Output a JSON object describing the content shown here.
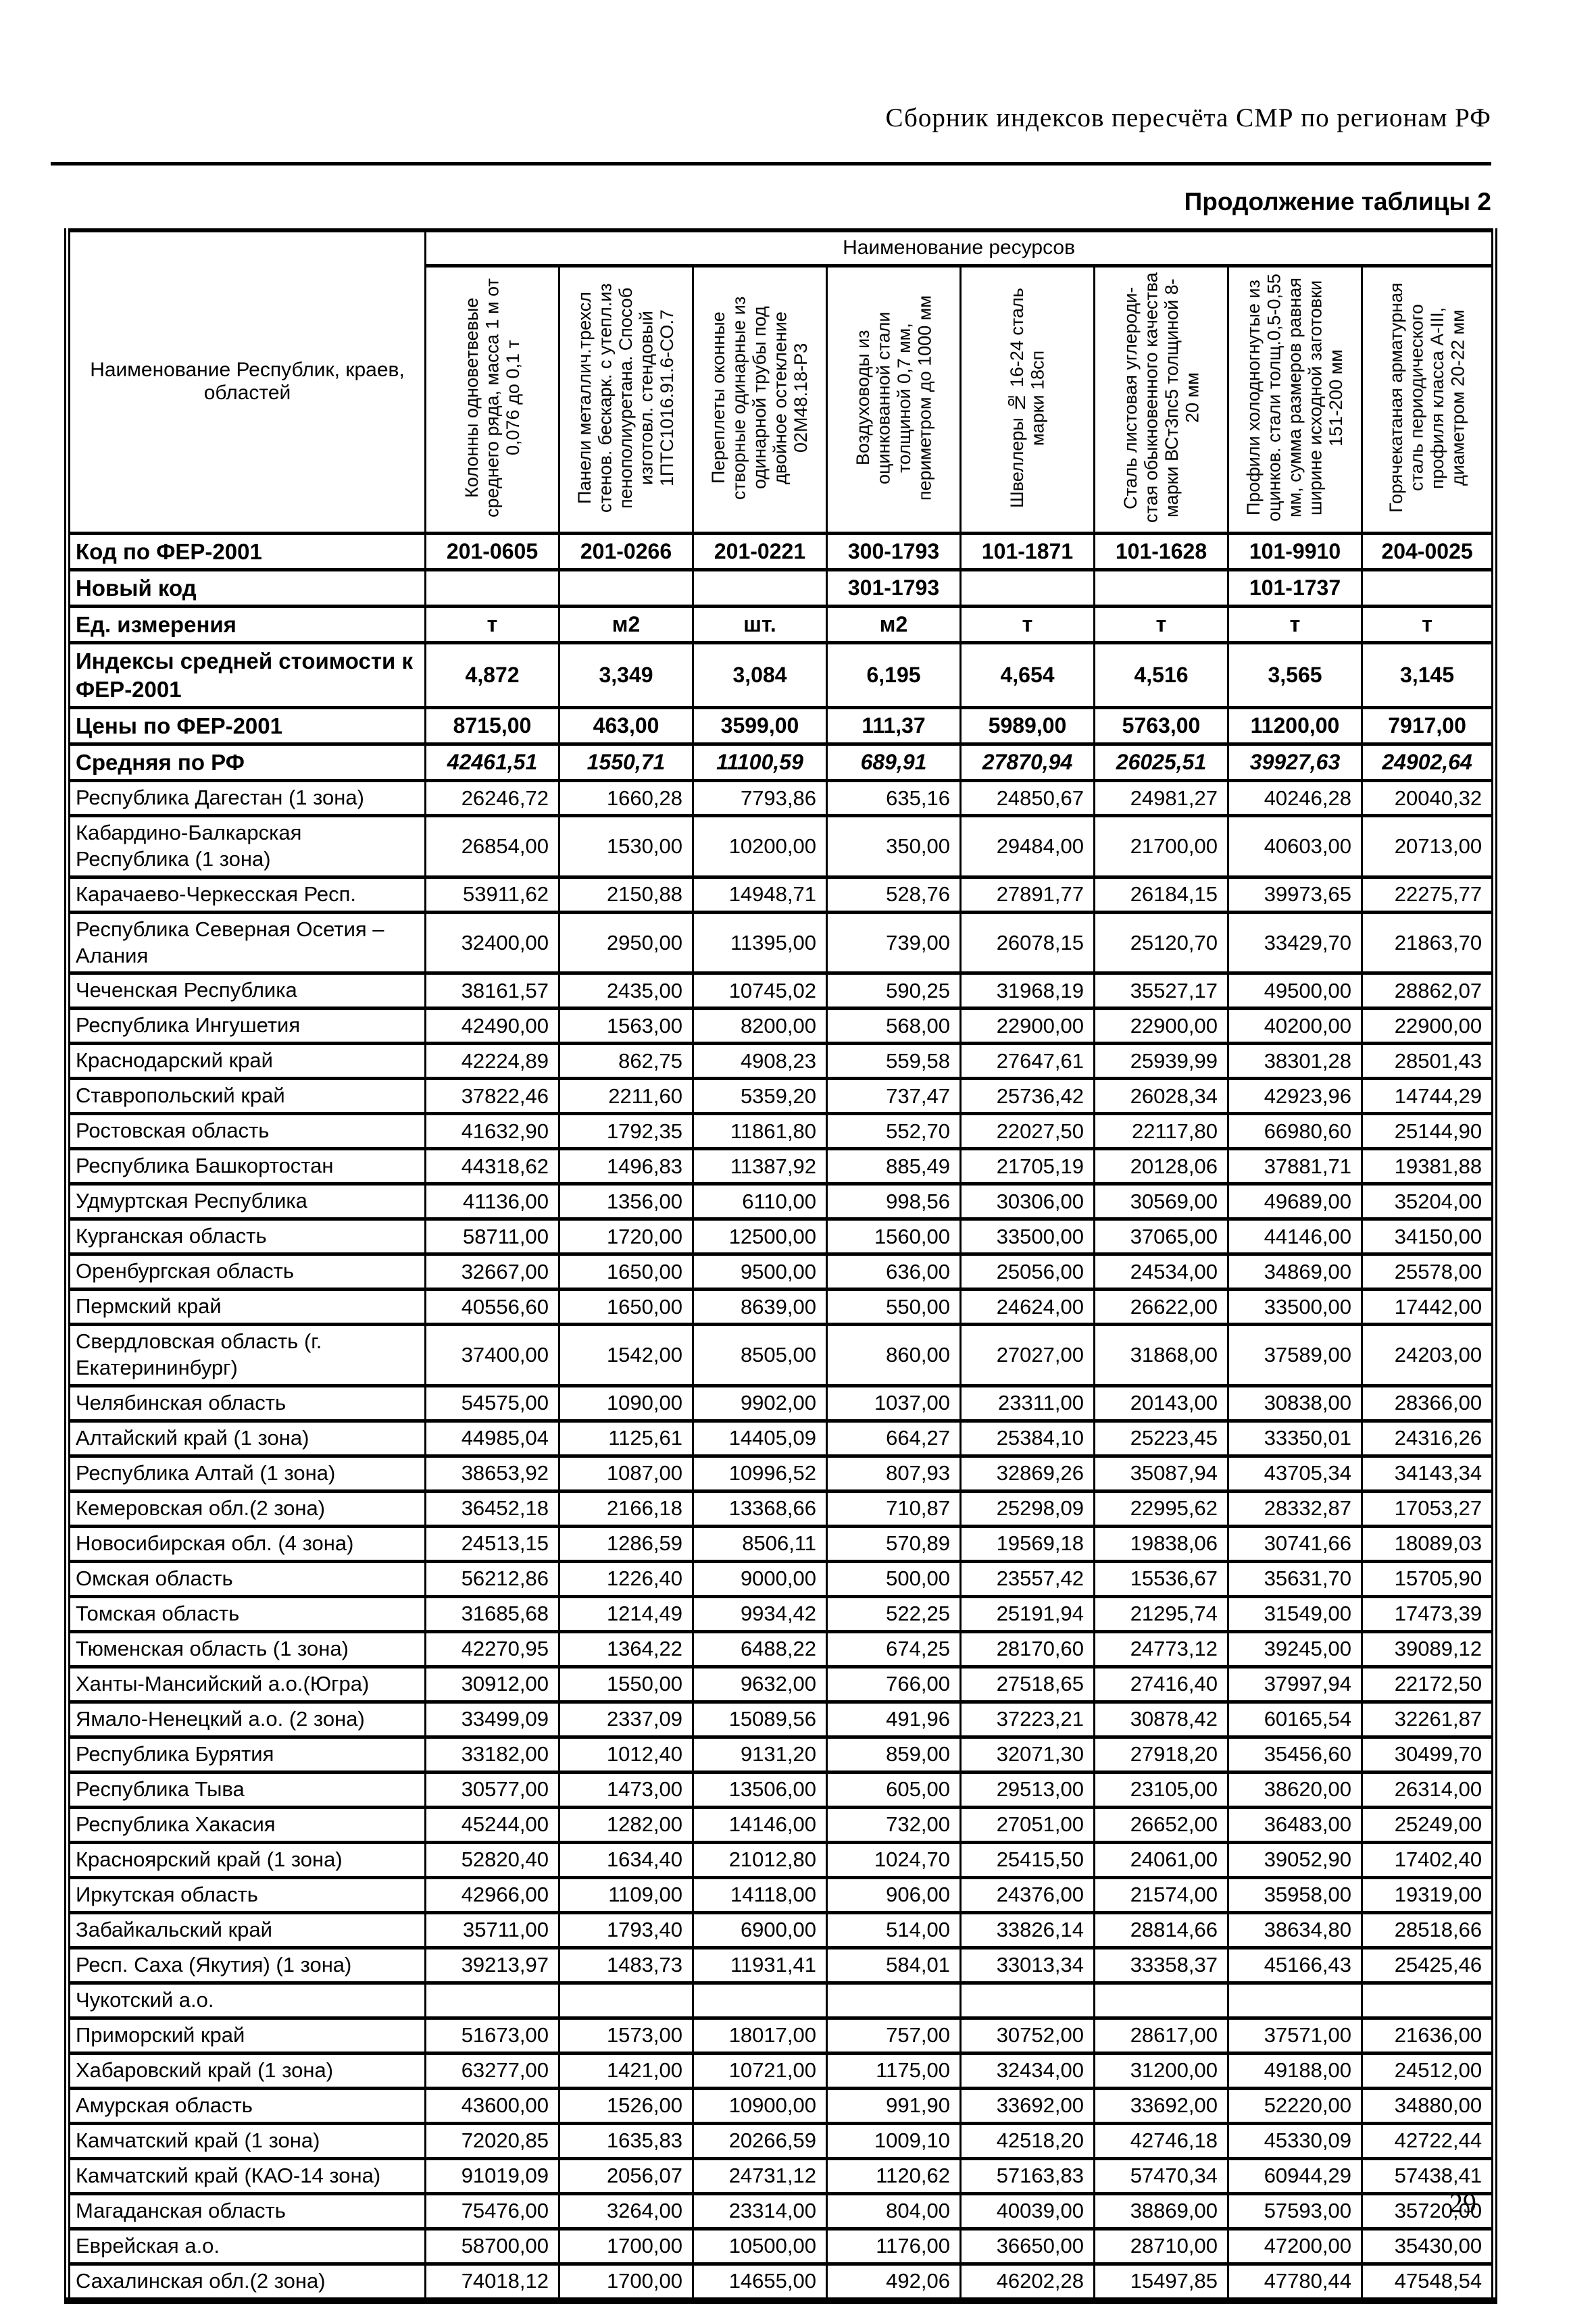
{
  "page": {
    "header_title": "Сборник индексов пересчёта СМР  по регионам РФ",
    "subtitle": "Продолжение таблицы 2",
    "page_number": "29"
  },
  "table": {
    "corner_header": "Наименование Республик, краев, областей",
    "resources_header": "Наименование ресурсов",
    "columns": [
      "Колонны одноветвевые среднего ряда, масса 1 м от 0,076 до 0,1 т",
      "Панели металлич.трехсл стенов. бескарк. с утепл.из пенополиуретана. Способ изготовл. стендовый 1ПТС1016.91.6-СО.7",
      "Переплеты оконные створные одинарные из одинарной трубы под двойное остекление 02М48.18-Р3",
      "Воздуховоды из оцинкованной стали толщиной 0,7 мм, периметром до 1000 мм",
      "Швеллеры № 16-24 сталь марки 18сп",
      "Сталь листовая углероди-стая обыкновенного качества  марки ВСт3пс5 толщиной 8-20 мм",
      "Профили холодногнутые из оцинков. стали толщ.0,5-0,55 мм, сумма размеров равная ширине исходной заготовки 151-200 мм",
      "Горячекатаная арматурная сталь периодического профиля класса А-III, диаметром 20-22 мм"
    ],
    "meta_rows": [
      {
        "label": "Код по ФЕР-2001",
        "class": "",
        "values": [
          "201-0605",
          "201-0266",
          "201-0221",
          "300-1793",
          "101-1871",
          "101-1628",
          "101-9910",
          "204-0025"
        ]
      },
      {
        "label": "Новый код",
        "class": "",
        "values": [
          "",
          "",
          "",
          "301-1793",
          "",
          "",
          "101-1737",
          ""
        ]
      },
      {
        "label": "Ед. измерения",
        "class": "",
        "values": [
          "т",
          "м2",
          "шт.",
          "м2",
          "т",
          "т",
          "т",
          "т"
        ]
      },
      {
        "label": "Индексы средней стоимости к ФЕР-2001",
        "class": "",
        "values": [
          "4,872",
          "3,349",
          "3,084",
          "6,195",
          "4,654",
          "4,516",
          "3,565",
          "3,145"
        ]
      },
      {
        "label": "Цены по ФЕР-2001",
        "class": "",
        "values": [
          "8715,00",
          "463,00",
          "3599,00",
          "111,37",
          "5989,00",
          "5763,00",
          "11200,00",
          "7917,00"
        ]
      },
      {
        "label": "Средняя по РФ",
        "class": "italic",
        "values": [
          "42461,51",
          "1550,71",
          "11100,59",
          "689,91",
          "27870,94",
          "26025,51",
          "39927,63",
          "24902,64"
        ]
      }
    ],
    "rows": [
      {
        "label": "Республика Дагестан (1 зона)",
        "values": [
          "26246,72",
          "1660,28",
          "7793,86",
          "635,16",
          "24850,67",
          "24981,27",
          "40246,28",
          "20040,32"
        ]
      },
      {
        "label": "Кабардино-Балкарская Республика (1 зона)",
        "values": [
          "26854,00",
          "1530,00",
          "10200,00",
          "350,00",
          "29484,00",
          "21700,00",
          "40603,00",
          "20713,00"
        ]
      },
      {
        "label": "Карачаево-Черкесская Респ.",
        "values": [
          "53911,62",
          "2150,88",
          "14948,71",
          "528,76",
          "27891,77",
          "26184,15",
          "39973,65",
          "22275,77"
        ]
      },
      {
        "label": "Республика Северная Осетия – Алания",
        "values": [
          "32400,00",
          "2950,00",
          "11395,00",
          "739,00",
          "26078,15",
          "25120,70",
          "33429,70",
          "21863,70"
        ]
      },
      {
        "label": "Чеченская Республика",
        "values": [
          "38161,57",
          "2435,00",
          "10745,02",
          "590,25",
          "31968,19",
          "35527,17",
          "49500,00",
          "28862,07"
        ]
      },
      {
        "label": "Республика Ингушетия",
        "values": [
          "42490,00",
          "1563,00",
          "8200,00",
          "568,00",
          "22900,00",
          "22900,00",
          "40200,00",
          "22900,00"
        ]
      },
      {
        "label": "Краснодарский край",
        "values": [
          "42224,89",
          "862,75",
          "4908,23",
          "559,58",
          "27647,61",
          "25939,99",
          "38301,28",
          "28501,43"
        ]
      },
      {
        "label": "Ставропольский край",
        "values": [
          "37822,46",
          "2211,60",
          "5359,20",
          "737,47",
          "25736,42",
          "26028,34",
          "42923,96",
          "14744,29"
        ]
      },
      {
        "label": "Ростовская область",
        "values": [
          "41632,90",
          "1792,35",
          "11861,80",
          "552,70",
          "22027,50",
          "22117,80",
          "66980,60",
          "25144,90"
        ]
      },
      {
        "label": "Республика Башкортостан",
        "values": [
          "44318,62",
          "1496,83",
          "11387,92",
          "885,49",
          "21705,19",
          "20128,06",
          "37881,71",
          "19381,88"
        ]
      },
      {
        "label": "Удмуртская Республика",
        "values": [
          "41136,00",
          "1356,00",
          "6110,00",
          "998,56",
          "30306,00",
          "30569,00",
          "49689,00",
          "35204,00"
        ]
      },
      {
        "label": "Курганская область",
        "values": [
          "58711,00",
          "1720,00",
          "12500,00",
          "1560,00",
          "33500,00",
          "37065,00",
          "44146,00",
          "34150,00"
        ]
      },
      {
        "label": "Оренбургская область",
        "values": [
          "32667,00",
          "1650,00",
          "9500,00",
          "636,00",
          "25056,00",
          "24534,00",
          "34869,00",
          "25578,00"
        ]
      },
      {
        "label": "Пермский край",
        "values": [
          "40556,60",
          "1650,00",
          "8639,00",
          "550,00",
          "24624,00",
          "26622,00",
          "33500,00",
          "17442,00"
        ]
      },
      {
        "label": "Свердловская область (г. Екатерининбург)",
        "values": [
          "37400,00",
          "1542,00",
          "8505,00",
          "860,00",
          "27027,00",
          "31868,00",
          "37589,00",
          "24203,00"
        ]
      },
      {
        "label": "Челябинская область",
        "values": [
          "54575,00",
          "1090,00",
          "9902,00",
          "1037,00",
          "23311,00",
          "20143,00",
          "30838,00",
          "28366,00"
        ]
      },
      {
        "label": "Алтайский край (1 зона)",
        "values": [
          "44985,04",
          "1125,61",
          "14405,09",
          "664,27",
          "25384,10",
          "25223,45",
          "33350,01",
          "24316,26"
        ]
      },
      {
        "label": "Республика Алтай (1 зона)",
        "values": [
          "38653,92",
          "1087,00",
          "10996,52",
          "807,93",
          "32869,26",
          "35087,94",
          "43705,34",
          "34143,34"
        ]
      },
      {
        "label": "Кемеровская обл.(2 зона)",
        "values": [
          "36452,18",
          "2166,18",
          "13368,66",
          "710,87",
          "25298,09",
          "22995,62",
          "28332,87",
          "17053,27"
        ]
      },
      {
        "label": "Новосибирская обл. (4 зона)",
        "values": [
          "24513,15",
          "1286,59",
          "8506,11",
          "570,89",
          "19569,18",
          "19838,06",
          "30741,66",
          "18089,03"
        ]
      },
      {
        "label": "Омская область",
        "values": [
          "56212,86",
          "1226,40",
          "9000,00",
          "500,00",
          "23557,42",
          "15536,67",
          "35631,70",
          "15705,90"
        ]
      },
      {
        "label": "Томская область",
        "values": [
          "31685,68",
          "1214,49",
          "9934,42",
          "522,25",
          "25191,94",
          "21295,74",
          "31549,00",
          "17473,39"
        ]
      },
      {
        "label": "Тюменская область (1 зона)",
        "values": [
          "42270,95",
          "1364,22",
          "6488,22",
          "674,25",
          "28170,60",
          "24773,12",
          "39245,00",
          "39089,12"
        ]
      },
      {
        "label": "Ханты-Мансийский а.о.(Югра)",
        "values": [
          "30912,00",
          "1550,00",
          "9632,00",
          "766,00",
          "27518,65",
          "27416,40",
          "37997,94",
          "22172,50"
        ]
      },
      {
        "label": "Ямало-Ненецкий а.о. (2 зона)",
        "values": [
          "33499,09",
          "2337,09",
          "15089,56",
          "491,96",
          "37223,21",
          "30878,42",
          "60165,54",
          "32261,87"
        ]
      },
      {
        "label": "Республика Бурятия",
        "values": [
          "33182,00",
          "1012,40",
          "9131,20",
          "859,00",
          "32071,30",
          "27918,20",
          "35456,60",
          "30499,70"
        ]
      },
      {
        "label": "Республика Тыва",
        "values": [
          "30577,00",
          "1473,00",
          "13506,00",
          "605,00",
          "29513,00",
          "23105,00",
          "38620,00",
          "26314,00"
        ]
      },
      {
        "label": "Республика Хакасия",
        "values": [
          "45244,00",
          "1282,00",
          "14146,00",
          "732,00",
          "27051,00",
          "26652,00",
          "36483,00",
          "25249,00"
        ]
      },
      {
        "label": "Красноярский край (1 зона)",
        "values": [
          "52820,40",
          "1634,40",
          "21012,80",
          "1024,70",
          "25415,50",
          "24061,00",
          "39052,90",
          "17402,40"
        ]
      },
      {
        "label": "Иркутская область",
        "values": [
          "42966,00",
          "1109,00",
          "14118,00",
          "906,00",
          "24376,00",
          "21574,00",
          "35958,00",
          "19319,00"
        ]
      },
      {
        "label": "Забайкальский край",
        "values": [
          "35711,00",
          "1793,40",
          "6900,00",
          "514,00",
          "33826,14",
          "28814,66",
          "38634,80",
          "28518,66"
        ]
      },
      {
        "label": "Респ. Саха (Якутия) (1 зона)",
        "values": [
          "39213,97",
          "1483,73",
          "11931,41",
          "584,01",
          "33013,34",
          "33358,37",
          "45166,43",
          "25425,46"
        ]
      },
      {
        "label": "Чукотский а.о.",
        "values": [
          "",
          "",
          "",
          "",
          "",
          "",
          "",
          ""
        ]
      },
      {
        "label": "Приморский край",
        "values": [
          "51673,00",
          "1573,00",
          "18017,00",
          "757,00",
          "30752,00",
          "28617,00",
          "37571,00",
          "21636,00"
        ]
      },
      {
        "label": "Хабаровский край (1 зона)",
        "values": [
          "63277,00",
          "1421,00",
          "10721,00",
          "1175,00",
          "32434,00",
          "31200,00",
          "49188,00",
          "24512,00"
        ]
      },
      {
        "label": "Амурская область",
        "values": [
          "43600,00",
          "1526,00",
          "10900,00",
          "991,90",
          "33692,00",
          "33692,00",
          "52220,00",
          "34880,00"
        ]
      },
      {
        "label": "Камчатский край (1 зона)",
        "values": [
          "72020,85",
          "1635,83",
          "20266,59",
          "1009,10",
          "42518,20",
          "42746,18",
          "45330,09",
          "42722,44"
        ]
      },
      {
        "label": "Камчатский край (КАО-14 зона)",
        "values": [
          "91019,09",
          "2056,07",
          "24731,12",
          "1120,62",
          "57163,83",
          "57470,34",
          "60944,29",
          "57438,41"
        ]
      },
      {
        "label": "Магаданская область",
        "values": [
          "75476,00",
          "3264,00",
          "23314,00",
          "804,00",
          "40039,00",
          "38869,00",
          "57593,00",
          "35720,00"
        ]
      },
      {
        "label": "Еврейская а.о.",
        "values": [
          "58700,00",
          "1700,00",
          "10500,00",
          "1176,00",
          "36650,00",
          "28710,00",
          "47200,00",
          "35430,00"
        ]
      },
      {
        "label": "Сахалинская обл.(2 зона)",
        "values": [
          "74018,12",
          "1700,00",
          "14655,00",
          "492,06",
          "46202,28",
          "15497,85",
          "47780,44",
          "47548,54"
        ]
      }
    ]
  }
}
